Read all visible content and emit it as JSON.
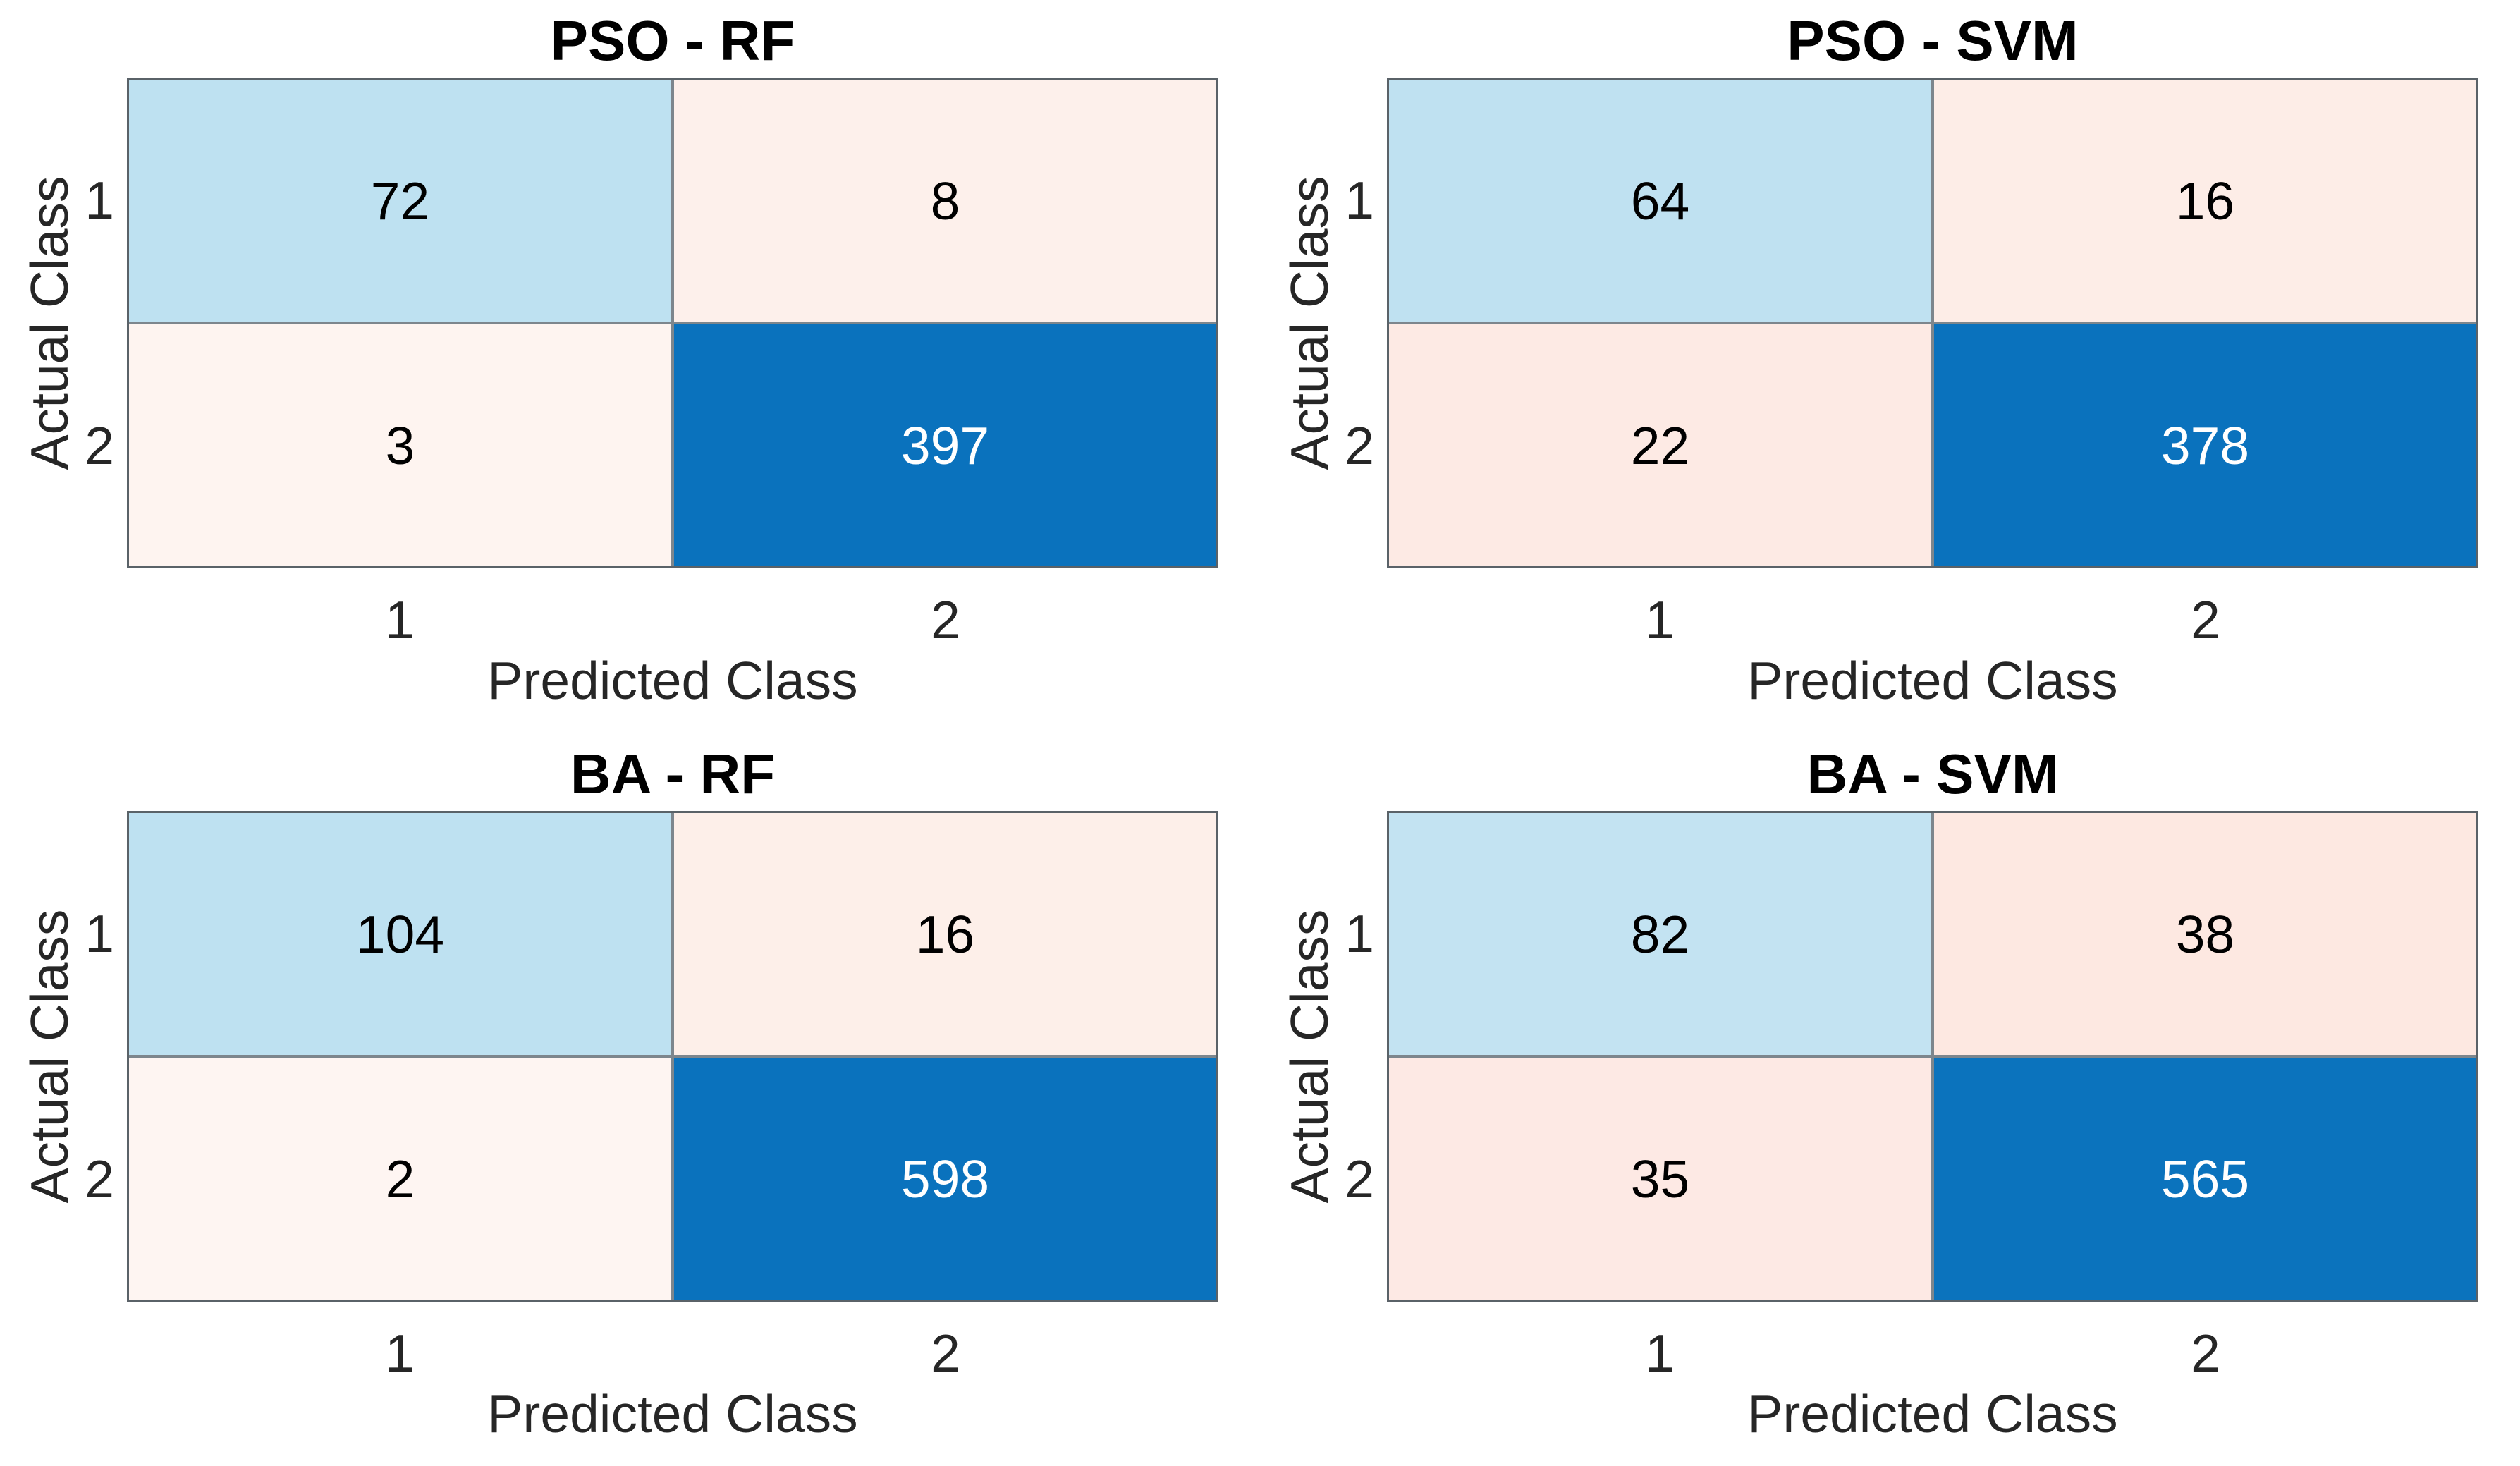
{
  "figure": {
    "background": "#ffffff",
    "outer_border_color": "#5a6268",
    "grid_line_color": "#7d868d",
    "axis_text_color": "#262626",
    "title_color": "#000000"
  },
  "chart_data": [
    {
      "type": "heatmap",
      "subtype": "confusion-matrix",
      "title": "PSO - RF",
      "xlabel": "Predicted Class",
      "ylabel": "Actual Class",
      "x_categories": [
        "1",
        "2"
      ],
      "y_categories": [
        "1",
        "2"
      ],
      "matrix": [
        [
          72,
          8
        ],
        [
          3,
          397
        ]
      ],
      "cell_colors": [
        [
          "#bee1f1",
          "#fdf0eb"
        ],
        [
          "#fef4f0",
          "#0a72bd"
        ]
      ],
      "value_colors": [
        [
          "#000000",
          "#000000"
        ],
        [
          "#000000",
          "#ffffff"
        ]
      ],
      "legend": "none",
      "grid": "on"
    },
    {
      "type": "heatmap",
      "subtype": "confusion-matrix",
      "title": "PSO - SVM",
      "xlabel": "Predicted Class",
      "ylabel": "Actual Class",
      "x_categories": [
        "1",
        "2"
      ],
      "y_categories": [
        "1",
        "2"
      ],
      "matrix": [
        [
          64,
          16
        ],
        [
          22,
          378
        ]
      ],
      "cell_colors": [
        [
          "#bfe1f1",
          "#fdede7"
        ],
        [
          "#fdeae4",
          "#0a72bd"
        ]
      ],
      "value_colors": [
        [
          "#000000",
          "#000000"
        ],
        [
          "#000000",
          "#ffffff"
        ]
      ],
      "legend": "none",
      "grid": "on"
    },
    {
      "type": "heatmap",
      "subtype": "confusion-matrix",
      "title": "BA - RF",
      "xlabel": "Predicted Class",
      "ylabel": "Actual Class",
      "x_categories": [
        "1",
        "2"
      ],
      "y_categories": [
        "1",
        "2"
      ],
      "matrix": [
        [
          104,
          16
        ],
        [
          2,
          598
        ]
      ],
      "cell_colors": [
        [
          "#bee1f1",
          "#fdefe9"
        ],
        [
          "#fef5f2",
          "#0a72bd"
        ]
      ],
      "value_colors": [
        [
          "#000000",
          "#000000"
        ],
        [
          "#000000",
          "#ffffff"
        ]
      ],
      "legend": "none",
      "grid": "on"
    },
    {
      "type": "heatmap",
      "subtype": "confusion-matrix",
      "title": "BA - SVM",
      "xlabel": "Predicted Class",
      "ylabel": "Actual Class",
      "x_categories": [
        "1",
        "2"
      ],
      "y_categories": [
        "1",
        "2"
      ],
      "matrix": [
        [
          82,
          38
        ],
        [
          35,
          565
        ]
      ],
      "cell_colors": [
        [
          "#c3e3f2",
          "#fde8e1"
        ],
        [
          "#fde9e4",
          "#0b73bd"
        ]
      ],
      "value_colors": [
        [
          "#000000",
          "#000000"
        ],
        [
          "#000000",
          "#ffffff"
        ]
      ],
      "legend": "none",
      "grid": "on"
    }
  ]
}
